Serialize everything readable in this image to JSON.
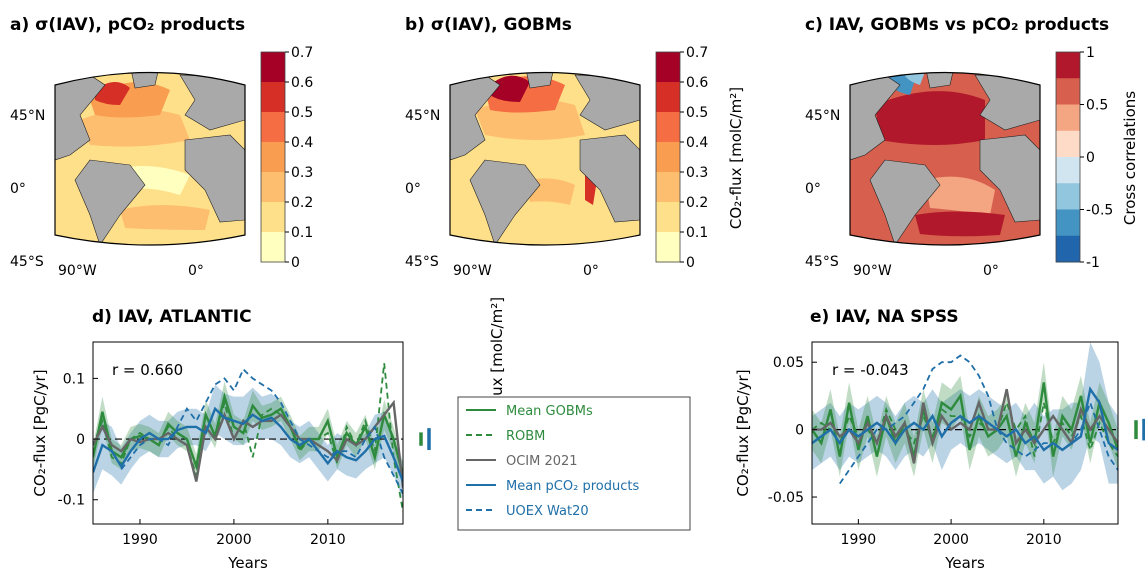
{
  "chart_data": [
    {
      "id": "a",
      "type": "heatmap",
      "title": "a) σ(IAV), pCO₂ products",
      "colorbar_label": "CO₂-flux [molC/m²]",
      "colorbar_ticks": [
        "0.7",
        "0.6",
        "0.5",
        "0.4",
        "0.3",
        "0.2",
        "0.1",
        "0"
      ],
      "colorbar_colors": [
        "#a50026",
        "#d62f26",
        "#f46d43",
        "#f99d50",
        "#fdbf6f",
        "#fee08b",
        "#ffffbf"
      ],
      "lat_labels": [
        "45°N",
        "0°",
        "45°S"
      ],
      "lon_labels": [
        "90°W",
        "0°"
      ],
      "clim": [
        0,
        0.7
      ]
    },
    {
      "id": "b",
      "type": "heatmap",
      "title": "b) σ(IAV), GOBMs",
      "colorbar_label": "CO₂-flux [molC/m²]",
      "colorbar_ticks": [
        "0.7",
        "0.6",
        "0.5",
        "0.4",
        "0.3",
        "0.2",
        "0.1",
        "0"
      ],
      "colorbar_colors": [
        "#a50026",
        "#d62f26",
        "#f46d43",
        "#f99d50",
        "#fdbf6f",
        "#fee08b",
        "#ffffbf"
      ],
      "lat_labels": [
        "45°N",
        "0°",
        "45°S"
      ],
      "lon_labels": [
        "90°W",
        "0°"
      ],
      "clim": [
        0,
        0.7
      ]
    },
    {
      "id": "c",
      "type": "heatmap",
      "title": "c) IAV, GOBMs vs pCO₂ products",
      "colorbar_label": "Cross correlations",
      "colorbar_ticks": [
        "1",
        "0.5",
        "0",
        "-0.5",
        "-1"
      ],
      "colorbar_colors": [
        "#b2182b",
        "#d6604d",
        "#f4a582",
        "#fddbc7",
        "#d1e5f0",
        "#92c5de",
        "#4393c3",
        "#2166ac"
      ],
      "lat_labels": [
        "45°N",
        "0°",
        "45°S"
      ],
      "lon_labels": [
        "90°W",
        "0°"
      ],
      "clim": [
        -1,
        1
      ]
    },
    {
      "id": "d",
      "type": "line",
      "title": "d) IAV, ATLANTIC",
      "annotation": "r = 0.660",
      "xlabel": "Years",
      "ylabel": "CO₂-flux [PgC/yr]",
      "xlim": [
        1985,
        2018
      ],
      "ylim": [
        -0.14,
        0.16
      ],
      "xticks": [
        1990,
        2000,
        2010
      ],
      "yticks": [
        -0.1,
        0,
        0.1
      ],
      "ytick_labels": [
        "-0.1",
        "0",
        "0.1"
      ],
      "x": [
        1985,
        1986,
        1987,
        1988,
        1989,
        1990,
        1991,
        1992,
        1993,
        1994,
        1995,
        1996,
        1997,
        1998,
        1999,
        2000,
        2001,
        2002,
        2003,
        2004,
        2005,
        2006,
        2007,
        2008,
        2009,
        2010,
        2011,
        2012,
        2013,
        2014,
        2015,
        2016,
        2017,
        2018
      ],
      "series": [
        {
          "name": "Mean GOBMs",
          "color": "#2e8b3e",
          "dash": "solid",
          "values": [
            -0.03,
            0.045,
            -0.02,
            -0.03,
            0.0,
            0.005,
            0.0,
            -0.01,
            0.025,
            0.01,
            0.0,
            -0.045,
            0.04,
            0.005,
            0.07,
            0.02,
            0.01,
            0.055,
            0.035,
            0.04,
            0.05,
            0.02,
            -0.015,
            0.0,
            0.0,
            0.03,
            -0.03,
            0.01,
            -0.01,
            0.02,
            -0.03,
            0.04,
            0.0,
            -0.06
          ]
        },
        {
          "name": "ROBM",
          "color": "#2e8b3e",
          "dash": "dash",
          "values": [
            -0.01,
            0.03,
            -0.03,
            -0.04,
            0.0,
            0.01,
            0.0,
            -0.01,
            0.02,
            0.0,
            -0.01,
            -0.06,
            0.02,
            0.0,
            0.06,
            0.0,
            0.03,
            -0.03,
            0.04,
            0.05,
            0.04,
            0.02,
            -0.02,
            0.0,
            0.0,
            0.01,
            -0.04,
            0.02,
            -0.01,
            0.03,
            -0.02,
            0.125,
            -0.03,
            -0.12
          ]
        },
        {
          "name": "OCIM 2021",
          "color": "#666666",
          "dash": "solid",
          "values": [
            -0.01,
            0.02,
            -0.01,
            -0.02,
            0.0,
            -0.005,
            0.0,
            0.0,
            0.01,
            0.0,
            -0.01,
            -0.07,
            0.02,
            0.0,
            0.04,
            0.0,
            0.03,
            0.02,
            0.03,
            0.03,
            0.04,
            0.02,
            0.0,
            0.0,
            -0.01,
            -0.02,
            -0.035,
            0.0,
            -0.01,
            0.0,
            0.02,
            0.04,
            0.06,
            -0.08
          ]
        },
        {
          "name": "Mean pCO₂ products",
          "color": "#1f6fa8",
          "dash": "solid",
          "values": [
            -0.055,
            -0.01,
            -0.02,
            -0.045,
            -0.02,
            0.0,
            0.01,
            0.0,
            0.0,
            0.015,
            0.02,
            0.02,
            0.01,
            0.05,
            0.035,
            0.03,
            0.025,
            0.04,
            0.03,
            0.035,
            0.02,
            0.0,
            -0.01,
            0.0,
            -0.02,
            -0.04,
            -0.02,
            -0.03,
            -0.035,
            -0.02,
            0.0,
            0.005,
            -0.03,
            -0.07
          ]
        },
        {
          "name": "UOEX Wat20",
          "color": "#1f6fa8",
          "dash": "dash",
          "values": [
            null,
            null,
            null,
            -0.05,
            -0.03,
            -0.01,
            0.0,
            0.0,
            -0.01,
            0.02,
            0.05,
            0.03,
            0.06,
            0.09,
            0.1,
            0.08,
            0.115,
            0.1,
            0.09,
            0.08,
            0.06,
            0.03,
            0.0,
            -0.01,
            -0.02,
            -0.03,
            -0.02,
            -0.02,
            -0.03,
            0.0,
            0.02,
            -0.03,
            -0.06,
            -0.09
          ]
        }
      ],
      "bands": [
        {
          "of": "Mean pCO₂ products",
          "color": "#1f6fa8",
          "lower": [
            -0.09,
            -0.05,
            -0.06,
            -0.075,
            -0.05,
            -0.03,
            -0.02,
            -0.03,
            -0.03,
            -0.015,
            -0.01,
            -0.01,
            -0.02,
            0.01,
            0.0,
            -0.01,
            -0.01,
            0.0,
            0.0,
            0.0,
            -0.01,
            -0.03,
            -0.04,
            -0.03,
            -0.05,
            -0.07,
            -0.05,
            -0.06,
            -0.065,
            -0.05,
            -0.04,
            -0.03,
            -0.06,
            -0.1
          ],
          "upper": [
            -0.02,
            0.03,
            0.02,
            -0.015,
            0.01,
            0.03,
            0.04,
            0.03,
            0.03,
            0.045,
            0.05,
            0.05,
            0.04,
            0.09,
            0.075,
            0.07,
            0.07,
            0.085,
            0.07,
            0.075,
            0.06,
            0.03,
            0.02,
            0.03,
            0.01,
            -0.01,
            0.01,
            0.0,
            -0.005,
            0.01,
            0.04,
            0.045,
            0.0,
            -0.04
          ]
        },
        {
          "of": "Mean GOBMs",
          "color": "#2e8b3e",
          "lower": [
            -0.05,
            0.02,
            -0.04,
            -0.05,
            -0.02,
            -0.015,
            -0.02,
            -0.03,
            0.005,
            -0.01,
            -0.02,
            -0.065,
            0.015,
            -0.015,
            0.045,
            0.0,
            -0.01,
            0.03,
            0.015,
            0.02,
            0.03,
            0.0,
            -0.035,
            -0.02,
            -0.02,
            0.01,
            -0.05,
            -0.01,
            -0.03,
            0.0,
            -0.05,
            0.015,
            -0.02,
            -0.08
          ],
          "upper": [
            -0.01,
            0.07,
            0.0,
            -0.01,
            0.02,
            0.025,
            0.02,
            0.01,
            0.045,
            0.03,
            0.02,
            -0.025,
            0.065,
            0.025,
            0.095,
            0.04,
            0.03,
            0.08,
            0.055,
            0.06,
            0.07,
            0.04,
            0.005,
            0.02,
            0.02,
            0.05,
            -0.01,
            0.03,
            0.01,
            0.04,
            -0.01,
            0.065,
            0.02,
            -0.04
          ]
        }
      ],
      "std_bars": [
        {
          "color": "#2e8b3e",
          "half_height": 0.011
        },
        {
          "color": "#1f6fa8",
          "half_height": 0.018
        }
      ]
    },
    {
      "id": "e",
      "type": "line",
      "title": "e) IAV, NA SPSS",
      "annotation": "r = -0.043",
      "xlabel": "Years",
      "ylabel": "CO₂-flux [PgC/yr]",
      "xlim": [
        1985,
        2018
      ],
      "ylim": [
        -0.07,
        0.065
      ],
      "xticks": [
        1990,
        2000,
        2010
      ],
      "yticks": [
        -0.05,
        0,
        0.05
      ],
      "ytick_labels": [
        "-0.05",
        "0",
        "0.05"
      ],
      "x": [
        1985,
        1986,
        1987,
        1988,
        1989,
        1990,
        1991,
        1992,
        1993,
        1994,
        1995,
        1996,
        1997,
        1998,
        1999,
        2000,
        2001,
        2002,
        2003,
        2004,
        2005,
        2006,
        2007,
        2008,
        2009,
        2010,
        2011,
        2012,
        2013,
        2014,
        2015,
        2016,
        2017,
        2018
      ],
      "series": [
        {
          "name": "Mean GOBMs",
          "color": "#2e8b3e",
          "dash": "solid",
          "values": [
            0.0,
            -0.01,
            0.015,
            -0.02,
            0.02,
            -0.015,
            0.01,
            -0.02,
            0.01,
            -0.01,
            0.005,
            -0.02,
            0.015,
            -0.01,
            0.02,
            0.015,
            0.025,
            -0.015,
            0.01,
            -0.005,
            0.0,
            0.01,
            -0.02,
            0.005,
            -0.01,
            0.035,
            -0.02,
            0.01,
            0.0,
            0.025,
            -0.01,
            0.02,
            0.005,
            -0.015
          ]
        },
        {
          "name": "ROBM",
          "color": "#2e8b3e",
          "dash": "dash",
          "values": [
            0.0,
            0.005,
            0.0,
            -0.01,
            0.01,
            -0.005,
            0.0,
            -0.01,
            0.015,
            0.0,
            0.0,
            -0.01,
            0.01,
            -0.005,
            0.015,
            0.01,
            0.01,
            -0.005,
            0.005,
            0.0,
            0.0,
            0.02,
            0.0,
            0.01,
            -0.02,
            0.02,
            -0.01,
            0.005,
            -0.005,
            0.01,
            -0.015,
            0.005,
            -0.01,
            -0.02
          ]
        },
        {
          "name": "OCIM 2021",
          "color": "#666666",
          "dash": "solid",
          "values": [
            0.0,
            0.0,
            0.005,
            -0.005,
            0.0,
            -0.01,
            0.005,
            -0.01,
            0.01,
            -0.005,
            0.005,
            -0.025,
            0.02,
            -0.01,
            0.01,
            0.0,
            0.005,
            0.0,
            0.02,
            0.0,
            0.0,
            0.03,
            -0.01,
            0.0,
            -0.01,
            0.0,
            0.01,
            0.0,
            -0.01,
            0.015,
            0.0,
            0.01,
            0.0,
            -0.01
          ]
        },
        {
          "name": "Mean pCO₂ products",
          "color": "#1f6fa8",
          "dash": "solid",
          "values": [
            -0.01,
            -0.005,
            0.0,
            -0.01,
            0.0,
            -0.005,
            0.0,
            0.005,
            0.0,
            -0.01,
            0.0,
            0.005,
            0.0,
            0.01,
            -0.005,
            0.005,
            0.01,
            0.005,
            0.01,
            0.005,
            0.0,
            -0.005,
            0.0,
            -0.01,
            -0.005,
            -0.015,
            -0.01,
            -0.015,
            -0.01,
            -0.005,
            0.03,
            0.02,
            -0.01,
            -0.015
          ]
        },
        {
          "name": "UOEX Wat20",
          "color": "#1f6fa8",
          "dash": "dash",
          "values": [
            null,
            null,
            null,
            -0.04,
            -0.03,
            -0.02,
            -0.01,
            0.0,
            0.0,
            0.005,
            0.01,
            0.02,
            0.03,
            0.045,
            0.05,
            0.05,
            0.055,
            0.05,
            0.04,
            0.025,
            0.0,
            -0.01,
            -0.015,
            -0.02,
            -0.015,
            -0.01,
            -0.01,
            -0.015,
            -0.01,
            0.0,
            0.02,
            0.0,
            -0.02,
            -0.03
          ]
        }
      ],
      "bands": [
        {
          "of": "Mean pCO₂ products",
          "color": "#1f6fa8",
          "lower": [
            -0.03,
            -0.025,
            -0.02,
            -0.03,
            -0.02,
            -0.025,
            -0.02,
            -0.015,
            -0.02,
            -0.03,
            -0.02,
            -0.015,
            -0.02,
            -0.01,
            -0.03,
            -0.015,
            -0.01,
            -0.015,
            -0.01,
            -0.015,
            -0.02,
            -0.025,
            -0.02,
            -0.03,
            -0.03,
            -0.04,
            -0.035,
            -0.045,
            -0.04,
            -0.03,
            -0.005,
            -0.01,
            -0.04,
            -0.04
          ],
          "upper": [
            0.01,
            0.015,
            0.02,
            0.01,
            0.02,
            0.015,
            0.02,
            0.025,
            0.02,
            0.01,
            0.02,
            0.025,
            0.02,
            0.03,
            0.02,
            0.025,
            0.03,
            0.025,
            0.03,
            0.025,
            0.02,
            0.015,
            0.02,
            0.01,
            0.02,
            0.01,
            0.015,
            0.015,
            0.02,
            0.02,
            0.065,
            0.05,
            0.02,
            0.01
          ]
        },
        {
          "of": "Mean GOBMs",
          "color": "#2e8b3e",
          "lower": [
            -0.015,
            -0.025,
            0.0,
            -0.035,
            0.005,
            -0.03,
            -0.005,
            -0.035,
            -0.005,
            -0.025,
            -0.01,
            -0.035,
            0.0,
            -0.025,
            0.005,
            0.0,
            0.01,
            -0.03,
            -0.005,
            -0.02,
            -0.015,
            -0.005,
            -0.035,
            -0.01,
            -0.025,
            0.02,
            -0.035,
            -0.005,
            -0.015,
            0.01,
            -0.025,
            0.005,
            -0.01,
            -0.03
          ],
          "upper": [
            0.015,
            0.005,
            0.03,
            -0.005,
            0.035,
            0.0,
            0.025,
            -0.005,
            0.025,
            0.005,
            0.02,
            -0.005,
            0.03,
            0.005,
            0.035,
            0.03,
            0.04,
            0.0,
            0.025,
            0.01,
            0.015,
            0.025,
            -0.005,
            0.02,
            0.005,
            0.05,
            -0.005,
            0.025,
            0.015,
            0.04,
            0.005,
            0.035,
            0.02,
            0.0
          ]
        }
      ],
      "std_bars": [
        {
          "color": "#2e8b3e",
          "half_height": 0.007
        },
        {
          "color": "#1f6fa8",
          "half_height": 0.008
        }
      ]
    }
  ],
  "legend": {
    "entries": [
      {
        "label": "Mean GOBMs",
        "color": "#2e8b3e",
        "dash": "solid"
      },
      {
        "label": "ROBM",
        "color": "#2e8b3e",
        "dash": "dash"
      },
      {
        "label": "OCIM 2021",
        "color": "#666666",
        "dash": "solid"
      },
      {
        "label": "Mean pCO₂ products",
        "color": "#1f6fa8",
        "dash": "solid"
      },
      {
        "label": "UOEX Wat20",
        "color": "#1f6fa8",
        "dash": "dash"
      }
    ]
  },
  "colors": {
    "land": "#a9a9a9",
    "ocean_edge": "#000000"
  }
}
